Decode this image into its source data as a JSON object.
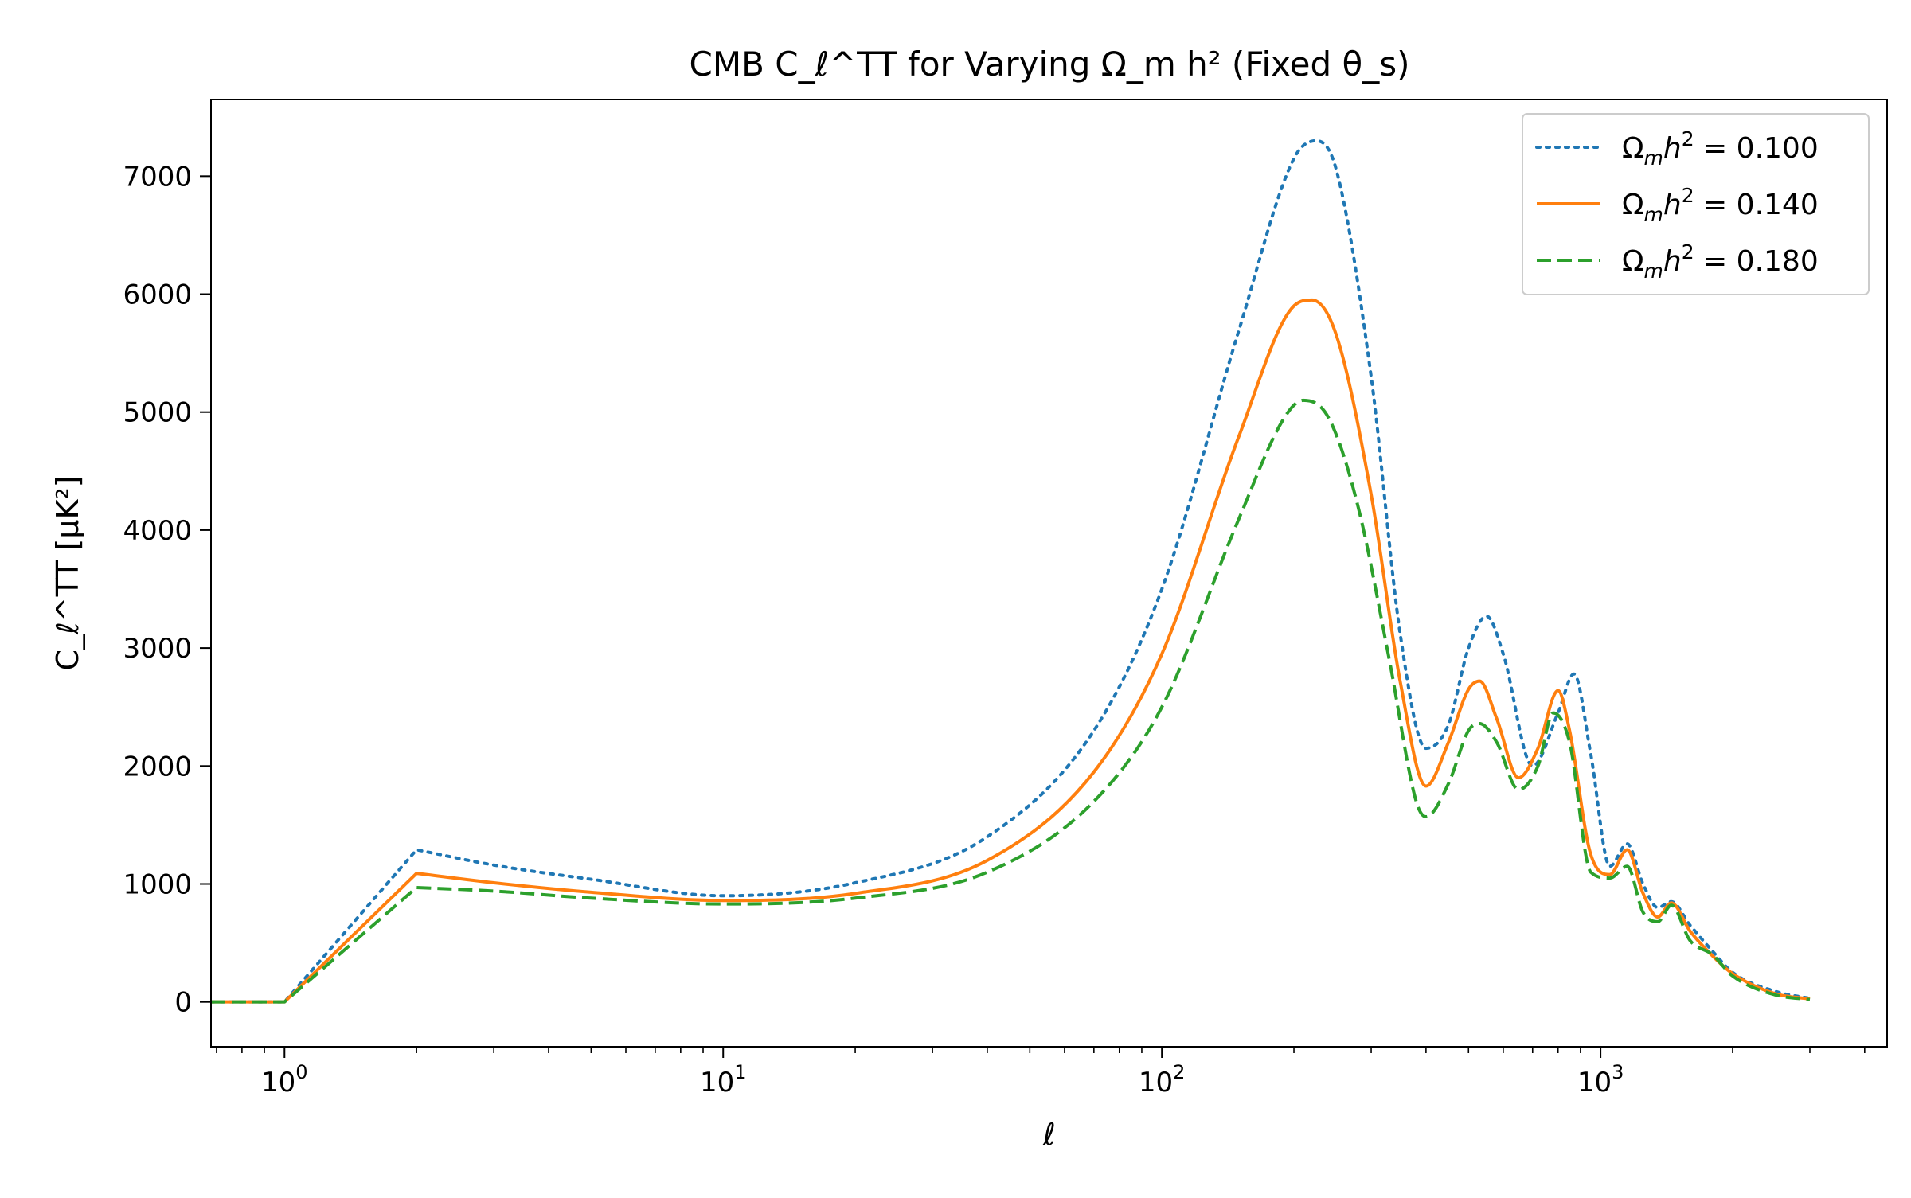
{
  "chart_data": {
    "type": "line",
    "title": "CMB C_ℓ^TT for Varying Ω_m h² (Fixed θ_s)",
    "xlabel": "ℓ",
    "ylabel": "C_ℓ^TT [μK²]",
    "xscale": "log",
    "xlim": [
      0.68,
      4500
    ],
    "ylim": [
      -380,
      7650
    ],
    "grid": false,
    "legend_position": "top-right",
    "xticks": [
      {
        "value": 1,
        "base": "10",
        "exp": "0"
      },
      {
        "value": 10,
        "base": "10",
        "exp": "1"
      },
      {
        "value": 100,
        "base": "10",
        "exp": "2"
      },
      {
        "value": 1000,
        "base": "10",
        "exp": "3"
      }
    ],
    "yticks": [
      0,
      1000,
      2000,
      3000,
      4000,
      5000,
      6000,
      7000
    ],
    "series": [
      {
        "name": "Ω_m h² = 0.100",
        "legend_prefix": "Ω",
        "legend_sub": "m",
        "legend_mid": "h",
        "legend_sup": "2",
        "legend_value": " = 0.100",
        "color": "#1f77b4",
        "style": "dotted",
        "x": [
          0.68,
          1,
          2,
          3,
          5,
          10,
          20,
          40,
          70,
          100,
          150,
          200,
          225,
          250,
          300,
          350,
          400,
          450,
          500,
          550,
          600,
          700,
          800,
          870,
          950,
          1050,
          1150,
          1250,
          1350,
          1450,
          1600,
          1800,
          2000,
          2500,
          3000
        ],
        "y": [
          0,
          0,
          1290,
          1160,
          1040,
          900,
          1010,
          1400,
          2300,
          3500,
          5700,
          7150,
          7300,
          7050,
          5300,
          3100,
          2150,
          2350,
          3000,
          3270,
          2950,
          2000,
          2450,
          2780,
          2100,
          1150,
          1340,
          1000,
          800,
          850,
          650,
          430,
          250,
          90,
          30
        ]
      },
      {
        "name": "Ω_m h² = 0.140",
        "legend_prefix": "Ω",
        "legend_sub": "m",
        "legend_mid": "h",
        "legend_sup": "2",
        "legend_value": " = 0.140",
        "color": "#ff7f0e",
        "style": "solid",
        "x": [
          0.68,
          1,
          2,
          3,
          5,
          10,
          20,
          40,
          70,
          100,
          150,
          200,
          220,
          250,
          300,
          350,
          400,
          450,
          500,
          530,
          580,
          650,
          720,
          800,
          850,
          950,
          1050,
          1150,
          1250,
          1350,
          1450,
          1600,
          1800,
          2000,
          2500,
          3000
        ],
        "y": [
          0,
          0,
          1090,
          1010,
          930,
          860,
          920,
          1200,
          1950,
          2950,
          4800,
          5900,
          5950,
          5650,
          4300,
          2700,
          1830,
          2200,
          2650,
          2720,
          2400,
          1900,
          2150,
          2640,
          2300,
          1250,
          1080,
          1290,
          920,
          720,
          840,
          600,
          390,
          240,
          70,
          25
        ]
      },
      {
        "name": "Ω_m h² = 0.180",
        "legend_prefix": "Ω",
        "legend_sub": "m",
        "legend_mid": "h",
        "legend_sup": "2",
        "legend_value": " = 0.180",
        "color": "#2ca02c",
        "style": "dashed",
        "x": [
          0.68,
          1,
          2,
          3,
          5,
          10,
          20,
          40,
          70,
          100,
          150,
          190,
          210,
          240,
          280,
          330,
          380,
          400,
          450,
          500,
          530,
          580,
          650,
          720,
          780,
          850,
          950,
          1050,
          1150,
          1250,
          1350,
          1450,
          1600,
          1800,
          2000,
          2500,
          3000
        ],
        "y": [
          0,
          0,
          970,
          940,
          880,
          830,
          880,
          1100,
          1700,
          2500,
          4100,
          4950,
          5100,
          4950,
          4200,
          2900,
          1700,
          1570,
          1850,
          2300,
          2360,
          2200,
          1800,
          2000,
          2450,
          2200,
          1100,
          1050,
          1150,
          760,
          680,
          820,
          520,
          400,
          220,
          60,
          20
        ]
      }
    ]
  }
}
